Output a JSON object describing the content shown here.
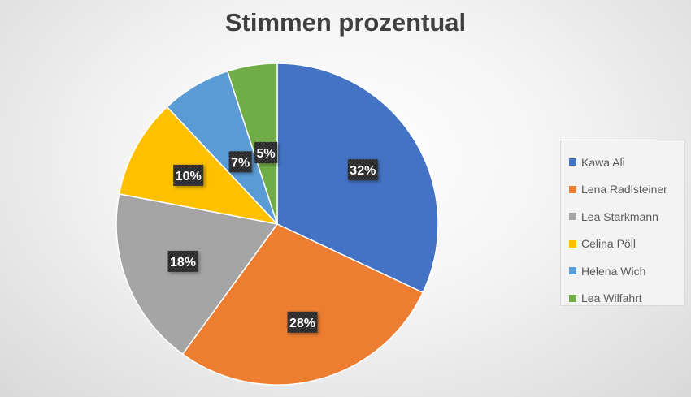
{
  "chart_data": {
    "type": "pie",
    "title": "Stimmen prozentual",
    "categories": [
      "Kawa Ali",
      "Lena Radlsteiner",
      "Lea Starkmann",
      "Celina Pöll",
      "Helena Wich",
      "Lea Wilfahrt"
    ],
    "values": [
      32,
      28,
      18,
      10,
      7,
      5
    ],
    "data_labels": [
      "32%",
      "28%",
      "18%",
      "10%",
      "7%",
      "5%"
    ],
    "colors": [
      "#4472C4",
      "#ED7D31",
      "#A5A5A5",
      "#FFC000",
      "#5B9BD5",
      "#70AD47"
    ],
    "legend_placement": "right"
  }
}
